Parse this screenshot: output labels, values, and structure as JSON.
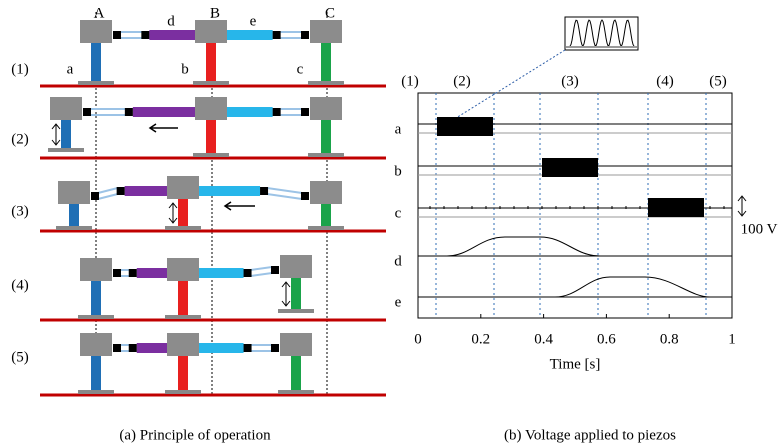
{
  "panel_a": {
    "columns": [
      "A",
      "B",
      "C"
    ],
    "feet": [
      "a",
      "b",
      "c"
    ],
    "links": [
      "d",
      "e"
    ],
    "steps": [
      "(1)",
      "(2)",
      "(3)",
      "(4)",
      "(5)"
    ],
    "caption": "(a) Principle of operation"
  },
  "panel_b": {
    "phases": [
      "(1)",
      "(2)",
      "(3)",
      "(4)",
      "(5)"
    ],
    "signals": [
      "a",
      "b",
      "c",
      "d",
      "e"
    ],
    "xticks": [
      0,
      0.2,
      0.4,
      0.6,
      0.8,
      1
    ],
    "xlabel": "Time [s]",
    "scale_label": "100 V",
    "caption": "(b) Voltage applied to piezos"
  }
}
